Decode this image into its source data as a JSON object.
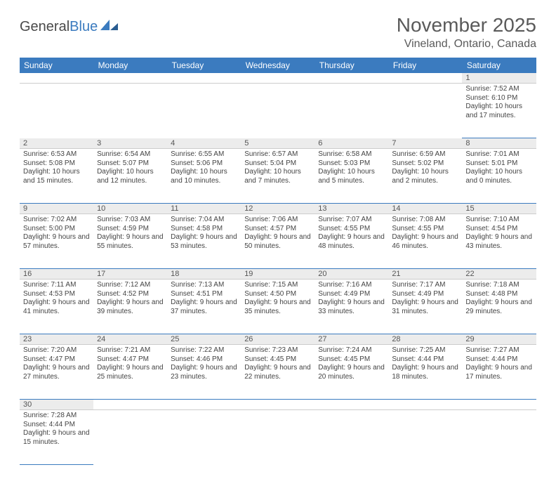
{
  "brand": {
    "general": "General",
    "blue": "Blue"
  },
  "title": "November 2025",
  "location": "Vineland, Ontario, Canada",
  "colors": {
    "header_bg": "#3b7bbf",
    "header_text": "#ffffff",
    "daynum_bg": "#ececec",
    "border": "#3b7bbf",
    "text": "#444444"
  },
  "weekdays": [
    "Sunday",
    "Monday",
    "Tuesday",
    "Wednesday",
    "Thursday",
    "Friday",
    "Saturday"
  ],
  "weeks": [
    [
      null,
      null,
      null,
      null,
      null,
      null,
      {
        "n": 1,
        "sr": "7:52 AM",
        "ss": "6:10 PM",
        "dl": "10 hours and 17 minutes."
      }
    ],
    [
      {
        "n": 2,
        "sr": "6:53 AM",
        "ss": "5:08 PM",
        "dl": "10 hours and 15 minutes."
      },
      {
        "n": 3,
        "sr": "6:54 AM",
        "ss": "5:07 PM",
        "dl": "10 hours and 12 minutes."
      },
      {
        "n": 4,
        "sr": "6:55 AM",
        "ss": "5:06 PM",
        "dl": "10 hours and 10 minutes."
      },
      {
        "n": 5,
        "sr": "6:57 AM",
        "ss": "5:04 PM",
        "dl": "10 hours and 7 minutes."
      },
      {
        "n": 6,
        "sr": "6:58 AM",
        "ss": "5:03 PM",
        "dl": "10 hours and 5 minutes."
      },
      {
        "n": 7,
        "sr": "6:59 AM",
        "ss": "5:02 PM",
        "dl": "10 hours and 2 minutes."
      },
      {
        "n": 8,
        "sr": "7:01 AM",
        "ss": "5:01 PM",
        "dl": "10 hours and 0 minutes."
      }
    ],
    [
      {
        "n": 9,
        "sr": "7:02 AM",
        "ss": "5:00 PM",
        "dl": "9 hours and 57 minutes."
      },
      {
        "n": 10,
        "sr": "7:03 AM",
        "ss": "4:59 PM",
        "dl": "9 hours and 55 minutes."
      },
      {
        "n": 11,
        "sr": "7:04 AM",
        "ss": "4:58 PM",
        "dl": "9 hours and 53 minutes."
      },
      {
        "n": 12,
        "sr": "7:06 AM",
        "ss": "4:57 PM",
        "dl": "9 hours and 50 minutes."
      },
      {
        "n": 13,
        "sr": "7:07 AM",
        "ss": "4:55 PM",
        "dl": "9 hours and 48 minutes."
      },
      {
        "n": 14,
        "sr": "7:08 AM",
        "ss": "4:55 PM",
        "dl": "9 hours and 46 minutes."
      },
      {
        "n": 15,
        "sr": "7:10 AM",
        "ss": "4:54 PM",
        "dl": "9 hours and 43 minutes."
      }
    ],
    [
      {
        "n": 16,
        "sr": "7:11 AM",
        "ss": "4:53 PM",
        "dl": "9 hours and 41 minutes."
      },
      {
        "n": 17,
        "sr": "7:12 AM",
        "ss": "4:52 PM",
        "dl": "9 hours and 39 minutes."
      },
      {
        "n": 18,
        "sr": "7:13 AM",
        "ss": "4:51 PM",
        "dl": "9 hours and 37 minutes."
      },
      {
        "n": 19,
        "sr": "7:15 AM",
        "ss": "4:50 PM",
        "dl": "9 hours and 35 minutes."
      },
      {
        "n": 20,
        "sr": "7:16 AM",
        "ss": "4:49 PM",
        "dl": "9 hours and 33 minutes."
      },
      {
        "n": 21,
        "sr": "7:17 AM",
        "ss": "4:49 PM",
        "dl": "9 hours and 31 minutes."
      },
      {
        "n": 22,
        "sr": "7:18 AM",
        "ss": "4:48 PM",
        "dl": "9 hours and 29 minutes."
      }
    ],
    [
      {
        "n": 23,
        "sr": "7:20 AM",
        "ss": "4:47 PM",
        "dl": "9 hours and 27 minutes."
      },
      {
        "n": 24,
        "sr": "7:21 AM",
        "ss": "4:47 PM",
        "dl": "9 hours and 25 minutes."
      },
      {
        "n": 25,
        "sr": "7:22 AM",
        "ss": "4:46 PM",
        "dl": "9 hours and 23 minutes."
      },
      {
        "n": 26,
        "sr": "7:23 AM",
        "ss": "4:45 PM",
        "dl": "9 hours and 22 minutes."
      },
      {
        "n": 27,
        "sr": "7:24 AM",
        "ss": "4:45 PM",
        "dl": "9 hours and 20 minutes."
      },
      {
        "n": 28,
        "sr": "7:25 AM",
        "ss": "4:44 PM",
        "dl": "9 hours and 18 minutes."
      },
      {
        "n": 29,
        "sr": "7:27 AM",
        "ss": "4:44 PM",
        "dl": "9 hours and 17 minutes."
      }
    ],
    [
      {
        "n": 30,
        "sr": "7:28 AM",
        "ss": "4:44 PM",
        "dl": "9 hours and 15 minutes."
      },
      null,
      null,
      null,
      null,
      null,
      null
    ]
  ],
  "labels": {
    "sunrise": "Sunrise:",
    "sunset": "Sunset:",
    "daylight": "Daylight:"
  }
}
